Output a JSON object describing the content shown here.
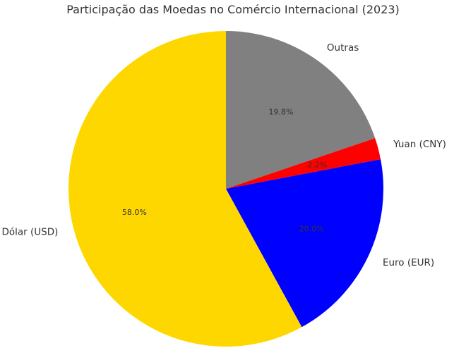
{
  "chart_data": {
    "type": "pie",
    "title": "Participação das Moedas no Comércio Internacional (2023)",
    "categories": [
      "Outras",
      "Yuan (CNY)",
      "Euro (EUR)",
      "Dólar (USD)"
    ],
    "values": [
      19.8,
      2.2,
      20.0,
      58.0
    ],
    "labels": [
      "19.8%",
      "2.2%",
      "20.0%",
      "58.0%"
    ],
    "colors": [
      "#808080",
      "#ff0000",
      "#0000ff",
      "#ffd700"
    ],
    "start_angle_deg": 90,
    "direction": "clockwise",
    "legend": "none"
  }
}
